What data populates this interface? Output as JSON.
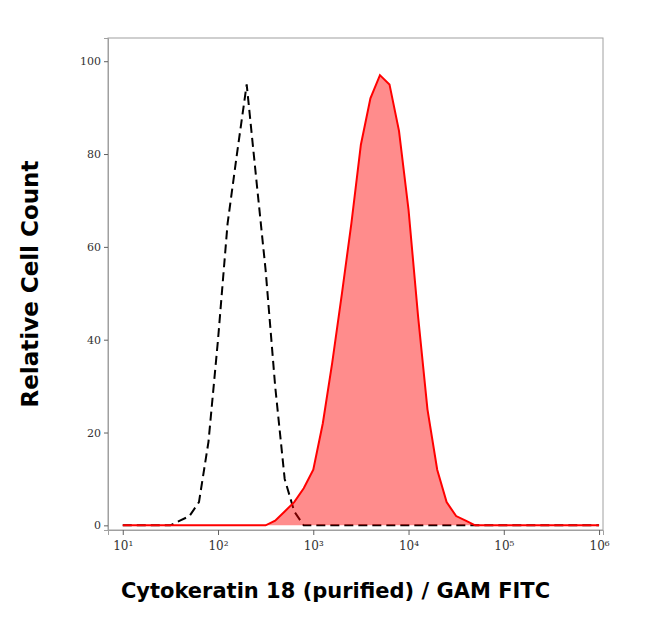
{
  "chart_data": {
    "type": "line",
    "x_label": "Cytokeratin 18 (purified) / GAM FITC",
    "y_label": "Relative Cell Count",
    "log": "x",
    "grid": false,
    "x": [
      10,
      12.6,
      15.8,
      20,
      25.1,
      31.6,
      39.8,
      50.1,
      63.1,
      79.4,
      100,
      126,
      158,
      200,
      251,
      316,
      398,
      501,
      631,
      794,
      1000,
      1260,
      1580,
      2000,
      2510,
      3160,
      3980,
      5010,
      6310,
      7940,
      10000,
      12600,
      15800,
      20000,
      25100,
      31600,
      39800,
      50100,
      63100,
      79400,
      100000,
      126000,
      158000,
      200000,
      251000,
      316000,
      398000,
      501000,
      631000,
      794000,
      1000000
    ],
    "series": [
      {
        "type": "line",
        "color": "#000000",
        "line_style": "dashed",
        "values": [
          0,
          0,
          0,
          0,
          0,
          0,
          1,
          2,
          5,
          18,
          40,
          65,
          80,
          95,
          75,
          55,
          30,
          10,
          3,
          0,
          0,
          0,
          0,
          0,
          0,
          0,
          0,
          0,
          0,
          0,
          0,
          0,
          0,
          0,
          0,
          0,
          0,
          0,
          0,
          0,
          0,
          0,
          0,
          0,
          0,
          0,
          0,
          0,
          0,
          0,
          0
        ]
      },
      {
        "type": "area",
        "color": "#ff0000",
        "line_style": "solid",
        "values": [
          0,
          0,
          0,
          0,
          0,
          0,
          0,
          0,
          0,
          0,
          0,
          0,
          0,
          0,
          0,
          0,
          1,
          3,
          5,
          8,
          12,
          22,
          35,
          50,
          65,
          82,
          92,
          97,
          95,
          85,
          68,
          45,
          25,
          12,
          5,
          2,
          1,
          0,
          0,
          0,
          0,
          0,
          0,
          0,
          0,
          0,
          0,
          0,
          0,
          0,
          0
        ]
      }
    ],
    "xlim": [
      7,
      1100000
    ],
    "xticks": [
      {
        "value": 10,
        "label": "10¹"
      },
      {
        "value": 100,
        "label": "10²"
      },
      {
        "value": 1000,
        "label": "10³"
      },
      {
        "value": 10000,
        "label": "10⁴"
      },
      {
        "value": 100000,
        "label": "10⁵"
      },
      {
        "value": 1000000,
        "label": "10⁶"
      }
    ],
    "ylim": [
      -1,
      105
    ],
    "yticks": [
      0,
      20,
      40,
      60,
      80,
      100
    ]
  }
}
